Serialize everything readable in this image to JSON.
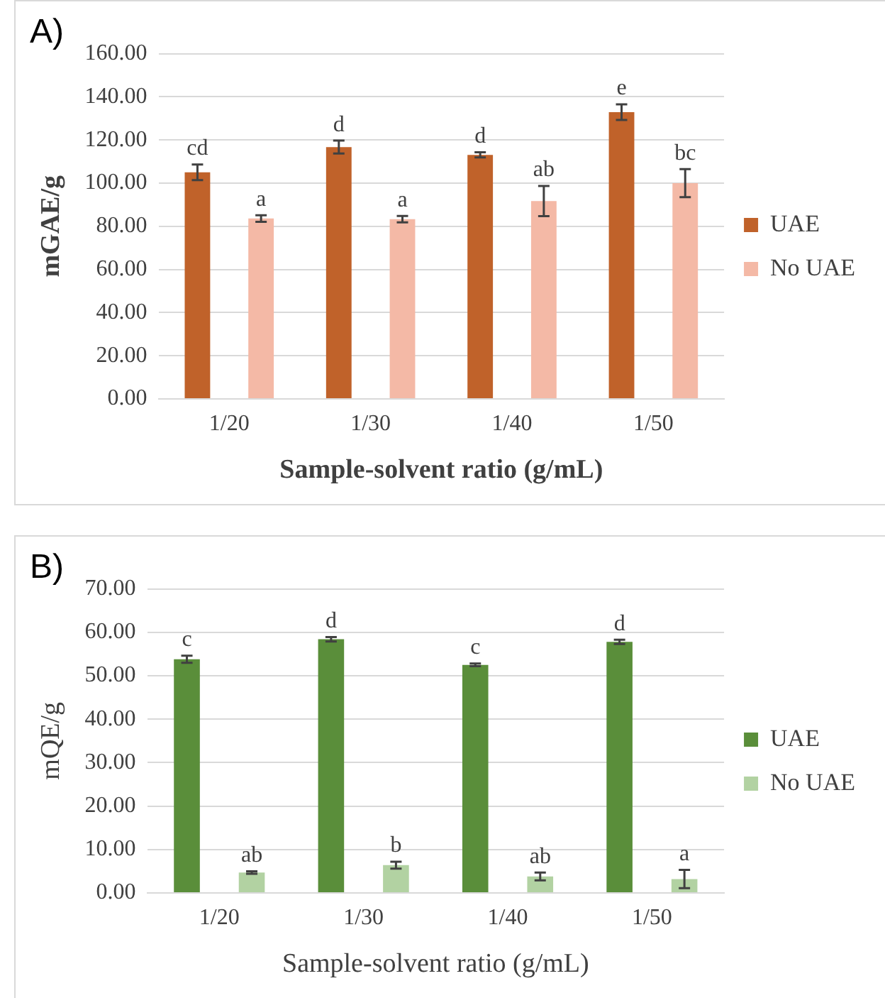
{
  "chart_data": [
    {
      "type": "bar",
      "title": "A)",
      "xlabel": "Sample-solvent ratio (g/mL)",
      "ylabel": "mGAE/g",
      "categories": [
        "1/20",
        "1/30",
        "1/40",
        "1/50"
      ],
      "series": [
        {
          "name": "UAE",
          "color": "#c0622a",
          "values": [
            105,
            116.7,
            113.1,
            132.9
          ],
          "errors": [
            3.6,
            3,
            1.2,
            3.6
          ],
          "value_labels": [
            "cd",
            "d",
            "d",
            "e"
          ]
        },
        {
          "name": "No UAE",
          "color": "#f4b9a6",
          "values": [
            83.6,
            83.3,
            91.7,
            100
          ],
          "errors": [
            1.5,
            1.5,
            7,
            6.5
          ],
          "value_labels": [
            "a",
            "a",
            "ab",
            "bc"
          ]
        }
      ],
      "ylim": [
        0,
        160
      ],
      "yticks": [
        {
          "value": 0,
          "label": "0.00"
        },
        {
          "value": 20,
          "label": "20.00"
        },
        {
          "value": 40,
          "label": "40.00"
        },
        {
          "value": 60,
          "label": "60.00"
        },
        {
          "value": 80,
          "label": "80.00"
        },
        {
          "value": 100,
          "label": "100.00"
        },
        {
          "value": 120,
          "label": "120.00"
        },
        {
          "value": 140,
          "label": "140.00"
        },
        {
          "value": 160,
          "label": "160.00"
        }
      ],
      "grid": "y",
      "legend": "right"
    },
    {
      "type": "bar",
      "title": "B)",
      "xlabel": "Sample-solvent ratio (g/mL)",
      "ylabel": "mQE/g",
      "categories": [
        "1/20",
        "1/30",
        "1/40",
        "1/50"
      ],
      "series": [
        {
          "name": "UAE",
          "color": "#5a8e3a",
          "values": [
            53.8,
            58.4,
            52.5,
            57.8
          ],
          "errors": [
            0.8,
            0.5,
            0.3,
            0.5
          ],
          "value_labels": [
            "c",
            "d",
            "c",
            "d"
          ]
        },
        {
          "name": "No UAE",
          "color": "#b2d2a2",
          "values": [
            4.7,
            6.4,
            3.8,
            3.2
          ],
          "errors": [
            0.3,
            0.8,
            0.9,
            2.1
          ],
          "value_labels": [
            "ab",
            "b",
            "ab",
            "a"
          ]
        }
      ],
      "ylim": [
        0,
        70
      ],
      "yticks": [
        {
          "value": 0,
          "label": "0.00"
        },
        {
          "value": 10,
          "label": "10.00"
        },
        {
          "value": 20,
          "label": "20.00"
        },
        {
          "value": 30,
          "label": "30.00"
        },
        {
          "value": 40,
          "label": "40.00"
        },
        {
          "value": 50,
          "label": "50.00"
        },
        {
          "value": 60,
          "label": "60.00"
        },
        {
          "value": 70,
          "label": "70.00"
        }
      ],
      "grid": "y",
      "legend": "right"
    }
  ]
}
